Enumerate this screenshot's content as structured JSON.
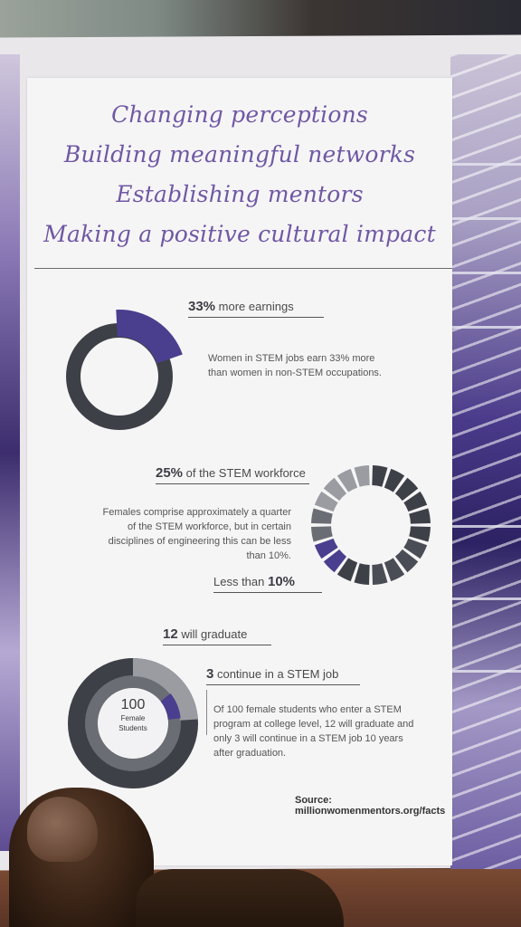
{
  "headings": [
    "Changing perceptions",
    "Building meaningful networks",
    "Establishing mentors",
    "Making a positive cultural impact"
  ],
  "stat1": {
    "value": "33%",
    "label": "more earnings",
    "description_line1": "Women in STEM jobs earn 33% more",
    "description_line2": "than women in non-STEM occupations.",
    "fraction": 0.33
  },
  "stat2": {
    "value": "25%",
    "label": "of the STEM workforce",
    "description_lines": [
      "Females comprise approximately a quarter",
      "of the STEM workforce, but in certain",
      "disciplines of engineering this can be less",
      "than 10%."
    ],
    "bottom_prefix": "Less than",
    "bottom_value": "10%",
    "segments_total": 20
  },
  "stat3": {
    "grad_value": "12",
    "grad_label": "will graduate",
    "stem_value": "3",
    "stem_label": "continue in a STEM job",
    "center_number": "100",
    "center_line1": "Female",
    "center_line2": "Students",
    "description_lines": [
      "Of 100 female students who enter a STEM",
      "program at college level, 12 will graduate and",
      "only 3 will continue in a STEM job 10 years",
      "after graduation."
    ]
  },
  "source": "Source: millionwomenmentors.org/facts",
  "colors": {
    "accent": "#4a3e8f",
    "dark": "#3d4047",
    "mid": "#6a6d73",
    "light": "#9a9ca1",
    "script": "#6f58a4"
  }
}
